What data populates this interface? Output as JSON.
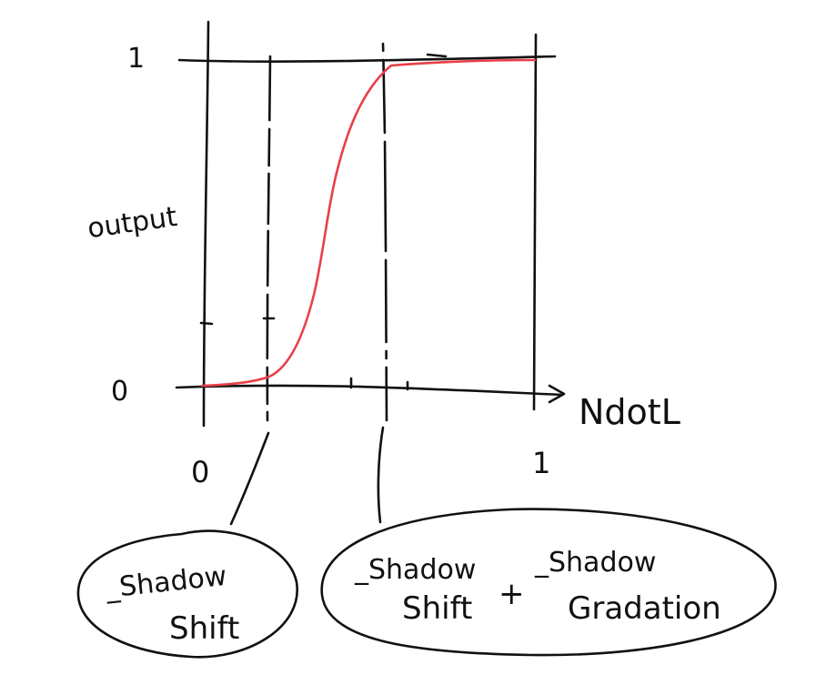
{
  "chart": {
    "axes": {
      "x_label": "NdotL",
      "y_label": "output",
      "x_min_label": "0",
      "x_max_label": "1",
      "y_min_label": "0",
      "y_max_label": "1"
    },
    "annotations": {
      "left_box": {
        "line1": "_Shadow",
        "line2": "Shift"
      },
      "right_box": {
        "term_a_line1": "_Shadow",
        "term_a_line2": "Shift",
        "operator": "+",
        "term_b_line1": "_Shadow",
        "term_b_line2": "Gradation"
      }
    },
    "colors": {
      "ink": "#111111",
      "curve": "#e8404a"
    }
  }
}
